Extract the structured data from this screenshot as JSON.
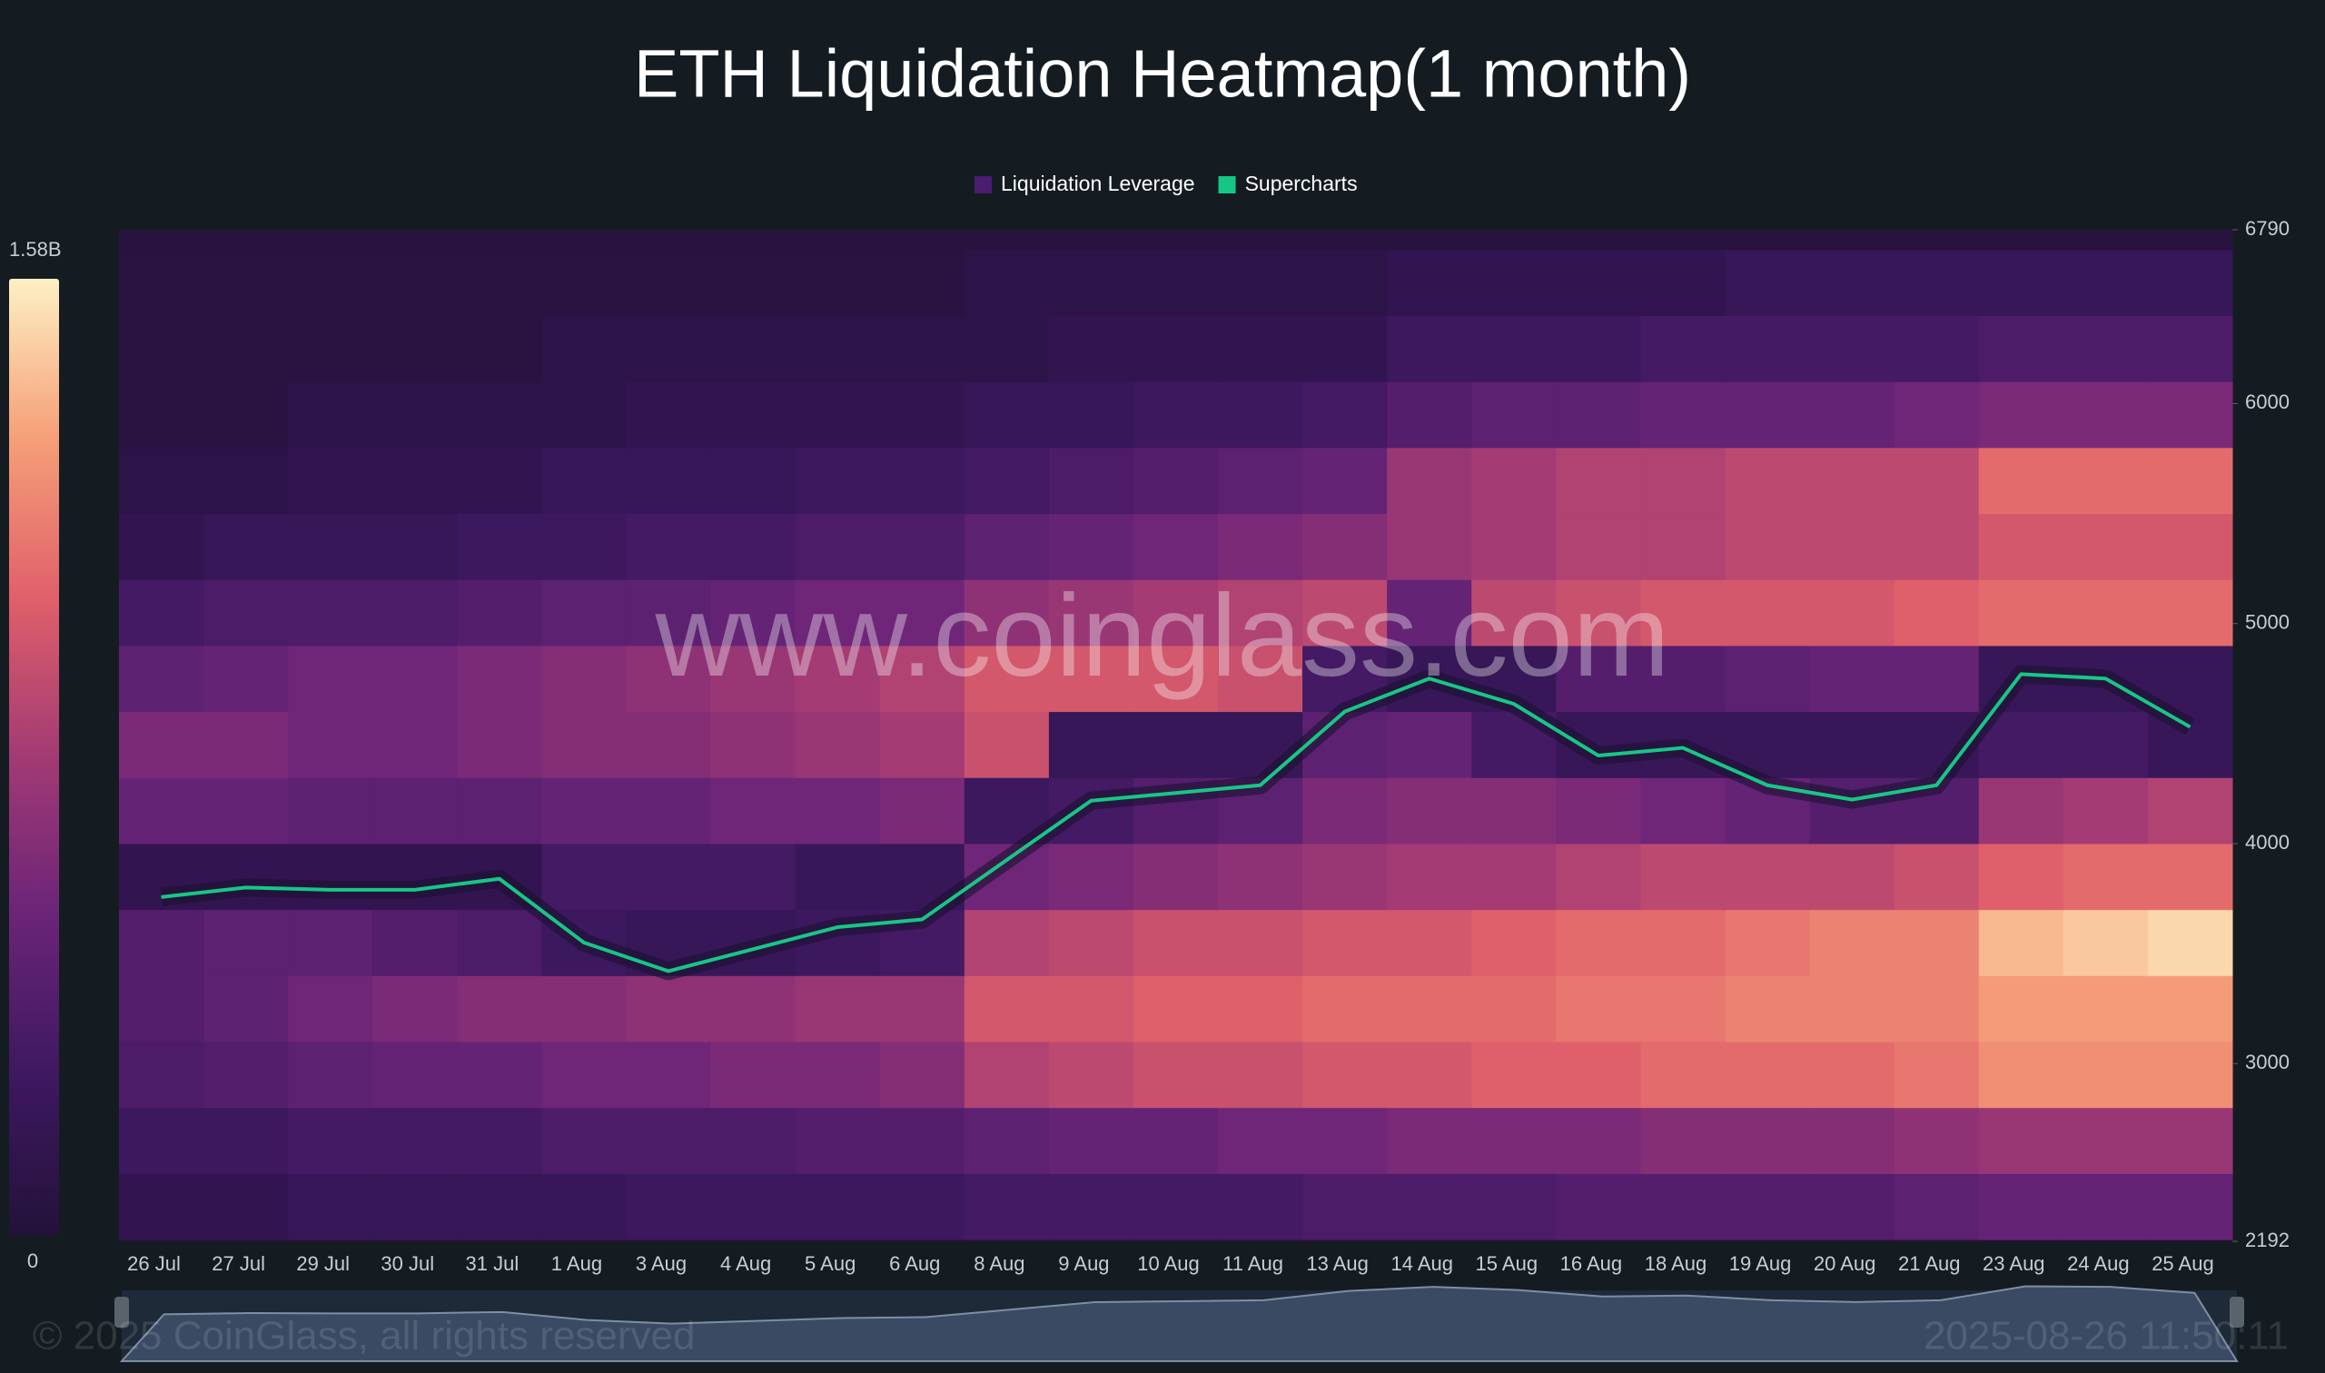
{
  "chart_data": {
    "type": "heatmap",
    "title": "ETH Liquidation Heatmap(1 month)",
    "watermark": "www.coinglass.com",
    "copyright": "© 2025 CoinGlass, all rights reserved",
    "timestamp": "2025-08-26 11:50:11",
    "categories": [
      "26 Jul",
      "27 Jul",
      "29 Jul",
      "30 Jul",
      "31 Jul",
      "1 Aug",
      "3 Aug",
      "4 Aug",
      "5 Aug",
      "6 Aug",
      "8 Aug",
      "9 Aug",
      "10 Aug",
      "11 Aug",
      "13 Aug",
      "14 Aug",
      "15 Aug",
      "16 Aug",
      "18 Aug",
      "19 Aug",
      "20 Aug",
      "21 Aug",
      "23 Aug",
      "24 Aug",
      "25 Aug"
    ],
    "ylim": [
      2192,
      6790
    ],
    "yticks": [
      2192,
      3000,
      4000,
      5000,
      6000,
      6790
    ],
    "series": [
      {
        "name": "Supercharts",
        "color": "#16c784",
        "values": [
          3757,
          3800,
          3790,
          3790,
          3840,
          3550,
          3420,
          3520,
          3620,
          3655,
          3925,
          4195,
          4230,
          4265,
          4600,
          4750,
          4635,
          4400,
          4435,
          4265,
          4200,
          4265,
          4770,
          4750,
          4530
        ]
      }
    ],
    "heatmap": {
      "name": "Liquidation Leverage",
      "color": "#4b1c70",
      "zlim": [
        0,
        1.58
      ],
      "zticks": [
        {
          "value": 1.58,
          "label": "1.58B"
        },
        0
      ],
      "colormap": [
        "#24123a",
        "#3d1860",
        "#6a2478",
        "#a23a74",
        "#e0606a",
        "#f59f78",
        "#fdf0c4"
      ],
      "levels": [
        2200,
        2500,
        2800,
        3100,
        3400,
        3700,
        4000,
        4300,
        4600,
        4900,
        5200,
        5500,
        5800,
        6100,
        6400,
        6700
      ],
      "values": [
        [
          0.15,
          0.15,
          0.2,
          0.2,
          0.2,
          0.2,
          0.25,
          0.25,
          0.25,
          0.25,
          0.3,
          0.3,
          0.3,
          0.3,
          0.35,
          0.35,
          0.35,
          0.4,
          0.4,
          0.4,
          0.4,
          0.45,
          0.5,
          0.5,
          0.5
        ],
        [
          0.25,
          0.25,
          0.3,
          0.3,
          0.3,
          0.35,
          0.35,
          0.35,
          0.4,
          0.4,
          0.45,
          0.5,
          0.5,
          0.55,
          0.55,
          0.6,
          0.6,
          0.6,
          0.65,
          0.65,
          0.65,
          0.7,
          0.75,
          0.75,
          0.75
        ],
        [
          0.35,
          0.4,
          0.45,
          0.5,
          0.5,
          0.55,
          0.55,
          0.6,
          0.6,
          0.65,
          0.85,
          0.9,
          0.95,
          0.95,
          1.0,
          1.0,
          1.05,
          1.05,
          1.1,
          1.1,
          1.1,
          1.15,
          1.25,
          1.25,
          1.25
        ],
        [
          0.4,
          0.45,
          0.55,
          0.6,
          0.65,
          0.65,
          0.7,
          0.7,
          0.75,
          0.75,
          1.0,
          1.0,
          1.05,
          1.05,
          1.1,
          1.1,
          1.1,
          1.15,
          1.15,
          1.2,
          1.2,
          1.2,
          1.3,
          1.3,
          1.3
        ],
        [
          0.4,
          0.45,
          0.45,
          0.4,
          0.35,
          0.25,
          0.2,
          0.2,
          0.25,
          0.3,
          0.85,
          0.9,
          0.95,
          0.95,
          1.0,
          1.0,
          1.05,
          1.1,
          1.1,
          1.15,
          1.2,
          1.2,
          1.4,
          1.45,
          1.5
        ],
        [
          0.15,
          0.15,
          0.15,
          0.15,
          0.15,
          0.3,
          0.3,
          0.3,
          0.2,
          0.2,
          0.55,
          0.6,
          0.65,
          0.7,
          0.75,
          0.8,
          0.8,
          0.85,
          0.9,
          0.9,
          0.9,
          0.95,
          1.05,
          1.1,
          1.1
        ],
        [
          0.5,
          0.5,
          0.45,
          0.45,
          0.45,
          0.5,
          0.5,
          0.55,
          0.55,
          0.6,
          0.25,
          0.3,
          0.4,
          0.45,
          0.6,
          0.65,
          0.65,
          0.6,
          0.55,
          0.5,
          0.4,
          0.4,
          0.75,
          0.8,
          0.85
        ],
        [
          0.6,
          0.6,
          0.55,
          0.55,
          0.6,
          0.65,
          0.65,
          0.7,
          0.75,
          0.8,
          0.95,
          0.2,
          0.2,
          0.2,
          0.45,
          0.5,
          0.3,
          0.2,
          0.2,
          0.2,
          0.2,
          0.2,
          0.3,
          0.3,
          0.2
        ],
        [
          0.45,
          0.5,
          0.55,
          0.55,
          0.6,
          0.65,
          0.7,
          0.75,
          0.8,
          0.85,
          1.0,
          1.0,
          1.0,
          0.95,
          0.3,
          0.2,
          0.2,
          0.4,
          0.4,
          0.45,
          0.5,
          0.5,
          0.2,
          0.2,
          0.2
        ],
        [
          0.3,
          0.35,
          0.35,
          0.35,
          0.4,
          0.45,
          0.45,
          0.5,
          0.55,
          0.55,
          0.7,
          0.75,
          0.8,
          0.85,
          0.9,
          0.5,
          0.9,
          0.95,
          1.0,
          1.0,
          1.0,
          1.05,
          1.1,
          1.1,
          1.1
        ],
        [
          0.15,
          0.2,
          0.2,
          0.2,
          0.25,
          0.25,
          0.3,
          0.3,
          0.35,
          0.35,
          0.45,
          0.5,
          0.55,
          0.6,
          0.65,
          0.75,
          0.8,
          0.85,
          0.85,
          0.9,
          0.9,
          0.9,
          1.0,
          1.0,
          1.0
        ],
        [
          0.1,
          0.1,
          0.15,
          0.15,
          0.15,
          0.2,
          0.2,
          0.2,
          0.25,
          0.25,
          0.3,
          0.35,
          0.4,
          0.45,
          0.5,
          0.75,
          0.8,
          0.85,
          0.85,
          0.9,
          0.9,
          0.9,
          1.1,
          1.1,
          1.1
        ],
        [
          0.05,
          0.05,
          0.1,
          0.1,
          0.1,
          0.1,
          0.15,
          0.15,
          0.15,
          0.15,
          0.2,
          0.2,
          0.25,
          0.25,
          0.3,
          0.4,
          0.45,
          0.45,
          0.5,
          0.5,
          0.5,
          0.55,
          0.6,
          0.6,
          0.6
        ],
        [
          0.05,
          0.05,
          0.05,
          0.05,
          0.05,
          0.1,
          0.1,
          0.1,
          0.1,
          0.1,
          0.1,
          0.15,
          0.15,
          0.15,
          0.15,
          0.25,
          0.25,
          0.25,
          0.3,
          0.3,
          0.3,
          0.3,
          0.35,
          0.35,
          0.35
        ],
        [
          0.05,
          0.05,
          0.05,
          0.05,
          0.05,
          0.05,
          0.05,
          0.05,
          0.05,
          0.05,
          0.1,
          0.1,
          0.1,
          0.1,
          0.1,
          0.15,
          0.15,
          0.15,
          0.15,
          0.2,
          0.2,
          0.2,
          0.2,
          0.2,
          0.2
        ],
        [
          0.03,
          0.03,
          0.03,
          0.03,
          0.03,
          0.03,
          0.03,
          0.03,
          0.03,
          0.03,
          0.03,
          0.03,
          0.03,
          0.03,
          0.03,
          0.03,
          0.03,
          0.03,
          0.03,
          0.03,
          0.03,
          0.03,
          0.03,
          0.03,
          0.03
        ]
      ]
    }
  }
}
